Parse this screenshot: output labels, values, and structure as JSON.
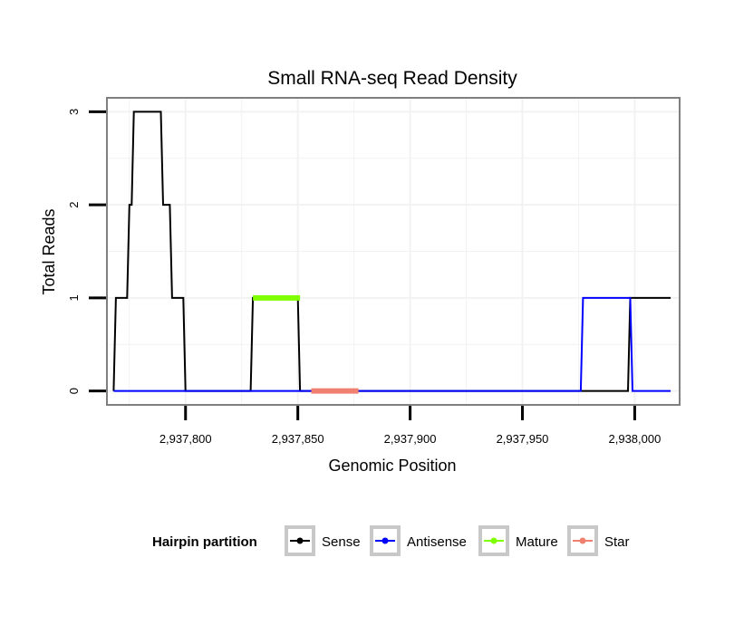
{
  "chart_data": {
    "type": "line",
    "title": "Small RNA-seq Read Density",
    "xlabel": "Genomic Position",
    "ylabel": "Total Reads",
    "xlim": [
      2937765,
      2938020
    ],
    "ylim": [
      -0.15,
      3.15
    ],
    "x_ticks": [
      2937800,
      2937850,
      2937900,
      2937950,
      2938000
    ],
    "x_tick_labels": [
      "2,937,800",
      "2,937,850",
      "2,937,900",
      "2,937,950",
      "2,938,000"
    ],
    "y_ticks": [
      0,
      1,
      2,
      3
    ],
    "y_tick_labels": [
      "0",
      "1",
      "2",
      "3"
    ],
    "grid": true,
    "legend": {
      "title": "Hairpin partition",
      "position": "bottom"
    },
    "series": [
      {
        "name": "Sense",
        "color": "#000000",
        "width": 2,
        "x": [
          2937768,
          2937769,
          2937774,
          2937775,
          2937776,
          2937777,
          2937789,
          2937790,
          2937793,
          2937794,
          2937799,
          2937800,
          2937829,
          2937830,
          2937850,
          2937851,
          2937997,
          2937998,
          2938016
        ],
        "y": [
          0,
          1,
          1,
          2,
          2,
          3,
          3,
          2,
          2,
          1,
          1,
          0,
          0,
          1,
          1,
          0,
          0,
          1,
          1
        ]
      },
      {
        "name": "Antisense",
        "color": "#0000ff",
        "width": 2,
        "x": [
          2937768,
          2937976,
          2937977,
          2937998,
          2937999,
          2938016
        ],
        "y": [
          0,
          0,
          1,
          1,
          0,
          0
        ]
      },
      {
        "name": "Mature",
        "color": "#7fff00",
        "width": 6,
        "x": [
          2937830,
          2937851
        ],
        "y": [
          1,
          1
        ]
      },
      {
        "name": "Star",
        "color": "#f08070",
        "width": 6,
        "x": [
          2937856,
          2937877
        ],
        "y": [
          0,
          0
        ]
      }
    ]
  }
}
